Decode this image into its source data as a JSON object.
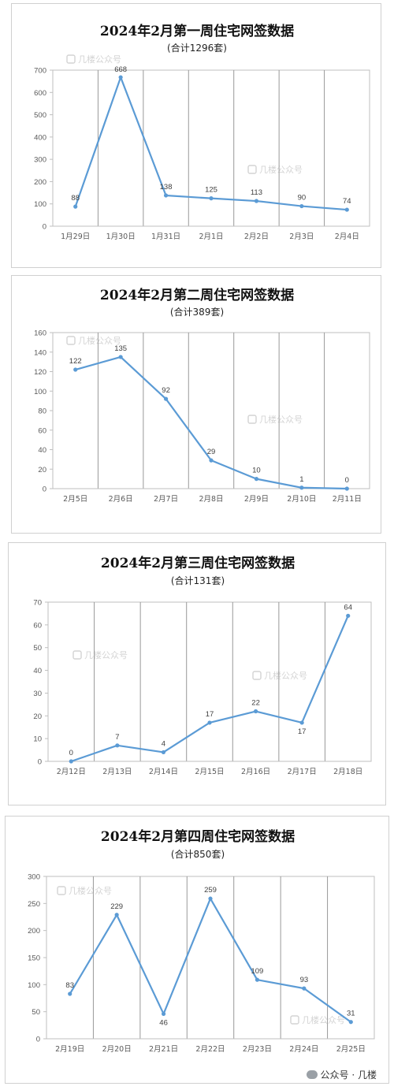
{
  "colors": {
    "line": "#5b9bd5",
    "grid": "#999999",
    "axis": "#bfbfbf",
    "text": "#595959",
    "title": "#111111"
  },
  "watermark": "几楼公众号",
  "footer": {
    "text": "公众号 · 几楼"
  },
  "chart_data": [
    {
      "type": "line",
      "title": "2024年2月第一周住宅网签数据",
      "subtitle": "(合计1296套)",
      "categories": [
        "1月29日",
        "1月30日",
        "1月31日",
        "2月1日",
        "2月2日",
        "2月3日",
        "2月4日"
      ],
      "series": [
        {
          "values": [
            88,
            668,
            138,
            125,
            113,
            90,
            74
          ]
        }
      ],
      "ylim": [
        0,
        700
      ],
      "yticks": [
        0,
        100,
        200,
        300,
        400,
        500,
        600,
        700
      ],
      "grid": "vertical"
    },
    {
      "type": "line",
      "title": "2024年2月第二周住宅网签数据",
      "subtitle": "(合计389套)",
      "categories": [
        "2月5日",
        "2月6日",
        "2月7日",
        "2月8日",
        "2月9日",
        "2月10日",
        "2月11日"
      ],
      "series": [
        {
          "values": [
            122,
            135,
            92,
            29,
            10,
            1,
            0
          ]
        }
      ],
      "ylim": [
        0,
        160
      ],
      "yticks": [
        0,
        20,
        40,
        60,
        80,
        100,
        120,
        140,
        160
      ],
      "grid": "vertical"
    },
    {
      "type": "line",
      "title": "2024年2月第三周住宅网签数据",
      "subtitle": "(合计131套)",
      "categories": [
        "2月12日",
        "2月13日",
        "2月14日",
        "2月15日",
        "2月16日",
        "2月17日",
        "2月18日"
      ],
      "series": [
        {
          "values": [
            0,
            7,
            4,
            17,
            22,
            17,
            64
          ]
        }
      ],
      "ylim": [
        0,
        70
      ],
      "yticks": [
        0,
        10,
        20,
        30,
        40,
        50,
        60,
        70
      ],
      "grid": "vertical"
    },
    {
      "type": "line",
      "title": "2024年2月第四周住宅网签数据",
      "subtitle": "(合计850套)",
      "categories": [
        "2月19日",
        "2月20日",
        "2月21日",
        "2月22日",
        "2月23日",
        "2月24日",
        "2月25日"
      ],
      "series": [
        {
          "values": [
            83,
            229,
            46,
            259,
            109,
            93,
            31
          ]
        }
      ],
      "ylim": [
        0,
        300
      ],
      "yticks": [
        0,
        50,
        100,
        150,
        200,
        250,
        300
      ],
      "grid": "vertical"
    }
  ]
}
